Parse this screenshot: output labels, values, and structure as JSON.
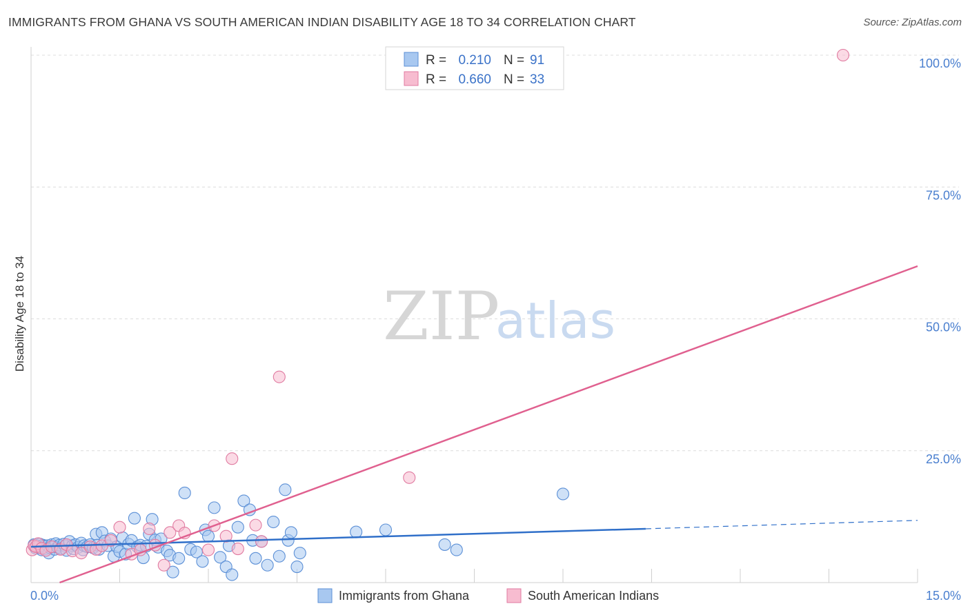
{
  "title": "IMMIGRANTS FROM GHANA VS SOUTH AMERICAN INDIAN DISABILITY AGE 18 TO 34 CORRELATION CHART",
  "source": "Source: ZipAtlas.com",
  "watermark": {
    "zip": "ZIP",
    "atlas": "atlas"
  },
  "legend": {
    "r_label": "R =",
    "n_label": "N =",
    "rows": [
      {
        "r": "0.210",
        "n": "91",
        "color": "#a8c8f0",
        "stroke": "#5b8fd6"
      },
      {
        "r": "0.660",
        "n": "33",
        "color": "#f7bcd0",
        "stroke": "#e07aa0"
      }
    ]
  },
  "chart_data": {
    "type": "scatter",
    "title": "IMMIGRANTS FROM GHANA VS SOUTH AMERICAN INDIAN DISABILITY AGE 18 TO 34 CORRELATION CHART",
    "xlabel": "",
    "ylabel": "Disability Age 18 to 34",
    "xlim": [
      0,
      15
    ],
    "ylim": [
      0,
      100
    ],
    "x_tick_labels": [
      "0.0%",
      "15.0%"
    ],
    "y_ticks": [
      {
        "value": 25,
        "label": "25.0%"
      },
      {
        "value": 50,
        "label": "50.0%"
      },
      {
        "value": 75,
        "label": "75.0%"
      },
      {
        "value": 100,
        "label": "100.0%"
      }
    ],
    "series": [
      {
        "name": "Immigrants from Ghana",
        "color": "#a8c8f0",
        "stroke": "#5b8fd6",
        "line_color": "#2f6fc9",
        "trend": {
          "x0": 0,
          "y0": 6.8,
          "x1": 10.4,
          "y1": 10.2,
          "x_dash_end": 15,
          "y_dash_end": 11.8
        },
        "points": [
          [
            0.05,
            7.2
          ],
          [
            0.08,
            6.5
          ],
          [
            0.1,
            7.0
          ],
          [
            0.12,
            6.8
          ],
          [
            0.15,
            7.3
          ],
          [
            0.18,
            6.2
          ],
          [
            0.2,
            7.1
          ],
          [
            0.22,
            6.9
          ],
          [
            0.25,
            6.4
          ],
          [
            0.28,
            7.0
          ],
          [
            0.3,
            5.6
          ],
          [
            0.32,
            6.6
          ],
          [
            0.35,
            7.2
          ],
          [
            0.38,
            6.8
          ],
          [
            0.4,
            6.3
          ],
          [
            0.42,
            7.4
          ],
          [
            0.45,
            6.7
          ],
          [
            0.48,
            7.1
          ],
          [
            0.5,
            6.5
          ],
          [
            0.55,
            7.3
          ],
          [
            0.58,
            6.9
          ],
          [
            0.6,
            6.1
          ],
          [
            0.65,
            7.8
          ],
          [
            0.7,
            7.0
          ],
          [
            0.72,
            6.4
          ],
          [
            0.75,
            7.2
          ],
          [
            0.8,
            6.7
          ],
          [
            0.85,
            7.5
          ],
          [
            0.88,
            6.2
          ],
          [
            0.9,
            7.0
          ],
          [
            0.95,
            6.8
          ],
          [
            1.0,
            7.2
          ],
          [
            1.05,
            6.6
          ],
          [
            1.1,
            9.2
          ],
          [
            1.12,
            7.1
          ],
          [
            1.15,
            6.3
          ],
          [
            1.2,
            9.5
          ],
          [
            1.25,
            7.9
          ],
          [
            1.3,
            7.0
          ],
          [
            1.35,
            8.3
          ],
          [
            1.4,
            5.0
          ],
          [
            1.45,
            6.8
          ],
          [
            1.5,
            5.9
          ],
          [
            1.55,
            8.5
          ],
          [
            1.6,
            5.4
          ],
          [
            1.65,
            7.3
          ],
          [
            1.7,
            8.0
          ],
          [
            1.75,
            12.2
          ],
          [
            1.8,
            6.8
          ],
          [
            1.85,
            7.1
          ],
          [
            1.9,
            4.7
          ],
          [
            1.95,
            6.9
          ],
          [
            2.0,
            9.2
          ],
          [
            2.05,
            12.0
          ],
          [
            2.1,
            8.1
          ],
          [
            2.15,
            6.7
          ],
          [
            2.2,
            8.3
          ],
          [
            2.3,
            6.0
          ],
          [
            2.35,
            5.2
          ],
          [
            2.4,
            2.0
          ],
          [
            2.5,
            4.6
          ],
          [
            2.6,
            17.0
          ],
          [
            2.7,
            6.3
          ],
          [
            2.8,
            5.8
          ],
          [
            2.9,
            4.0
          ],
          [
            2.95,
            10.0
          ],
          [
            3.0,
            8.8
          ],
          [
            3.1,
            14.2
          ],
          [
            3.2,
            4.8
          ],
          [
            3.3,
            3.0
          ],
          [
            3.35,
            7.0
          ],
          [
            3.4,
            1.5
          ],
          [
            3.5,
            10.5
          ],
          [
            3.6,
            15.5
          ],
          [
            3.7,
            13.8
          ],
          [
            3.75,
            8.0
          ],
          [
            3.8,
            4.6
          ],
          [
            3.9,
            7.8
          ],
          [
            4.0,
            3.3
          ],
          [
            4.1,
            11.5
          ],
          [
            4.2,
            5.0
          ],
          [
            4.3,
            17.6
          ],
          [
            4.35,
            8.0
          ],
          [
            4.4,
            9.5
          ],
          [
            4.5,
            3.0
          ],
          [
            4.55,
            5.6
          ],
          [
            5.5,
            9.6
          ],
          [
            6.0,
            10.0
          ],
          [
            7.0,
            7.2
          ],
          [
            7.2,
            6.2
          ],
          [
            9.0,
            16.8
          ]
        ]
      },
      {
        "name": "South American Indians",
        "color": "#f7bcd0",
        "stroke": "#e07aa0",
        "line_color": "#e0608f",
        "trend": {
          "x0": 0,
          "y0": -2.0,
          "x1": 15,
          "y1": 60.0
        },
        "points": [
          [
            0.02,
            6.2
          ],
          [
            0.05,
            7.0
          ],
          [
            0.08,
            6.8
          ],
          [
            0.12,
            7.4
          ],
          [
            0.18,
            6.5
          ],
          [
            0.25,
            6.1
          ],
          [
            0.35,
            6.8
          ],
          [
            0.5,
            6.3
          ],
          [
            0.6,
            7.2
          ],
          [
            0.7,
            6.0
          ],
          [
            0.85,
            5.6
          ],
          [
            1.0,
            6.8
          ],
          [
            1.1,
            6.3
          ],
          [
            1.2,
            7.0
          ],
          [
            1.35,
            8.0
          ],
          [
            1.5,
            10.5
          ],
          [
            1.7,
            5.4
          ],
          [
            1.85,
            6.2
          ],
          [
            2.0,
            10.2
          ],
          [
            2.1,
            7.1
          ],
          [
            2.25,
            3.3
          ],
          [
            2.35,
            9.5
          ],
          [
            2.5,
            10.8
          ],
          [
            2.6,
            9.4
          ],
          [
            3.0,
            6.2
          ],
          [
            3.1,
            10.8
          ],
          [
            3.3,
            8.8
          ],
          [
            3.5,
            6.4
          ],
          [
            3.8,
            10.9
          ],
          [
            3.9,
            7.8
          ],
          [
            4.2,
            39.0
          ],
          [
            3.4,
            23.5
          ],
          [
            6.4,
            19.9
          ]
        ]
      }
    ]
  },
  "bottom_legend": [
    {
      "label": "Immigrants from Ghana"
    },
    {
      "label": "South American Indians"
    }
  ]
}
